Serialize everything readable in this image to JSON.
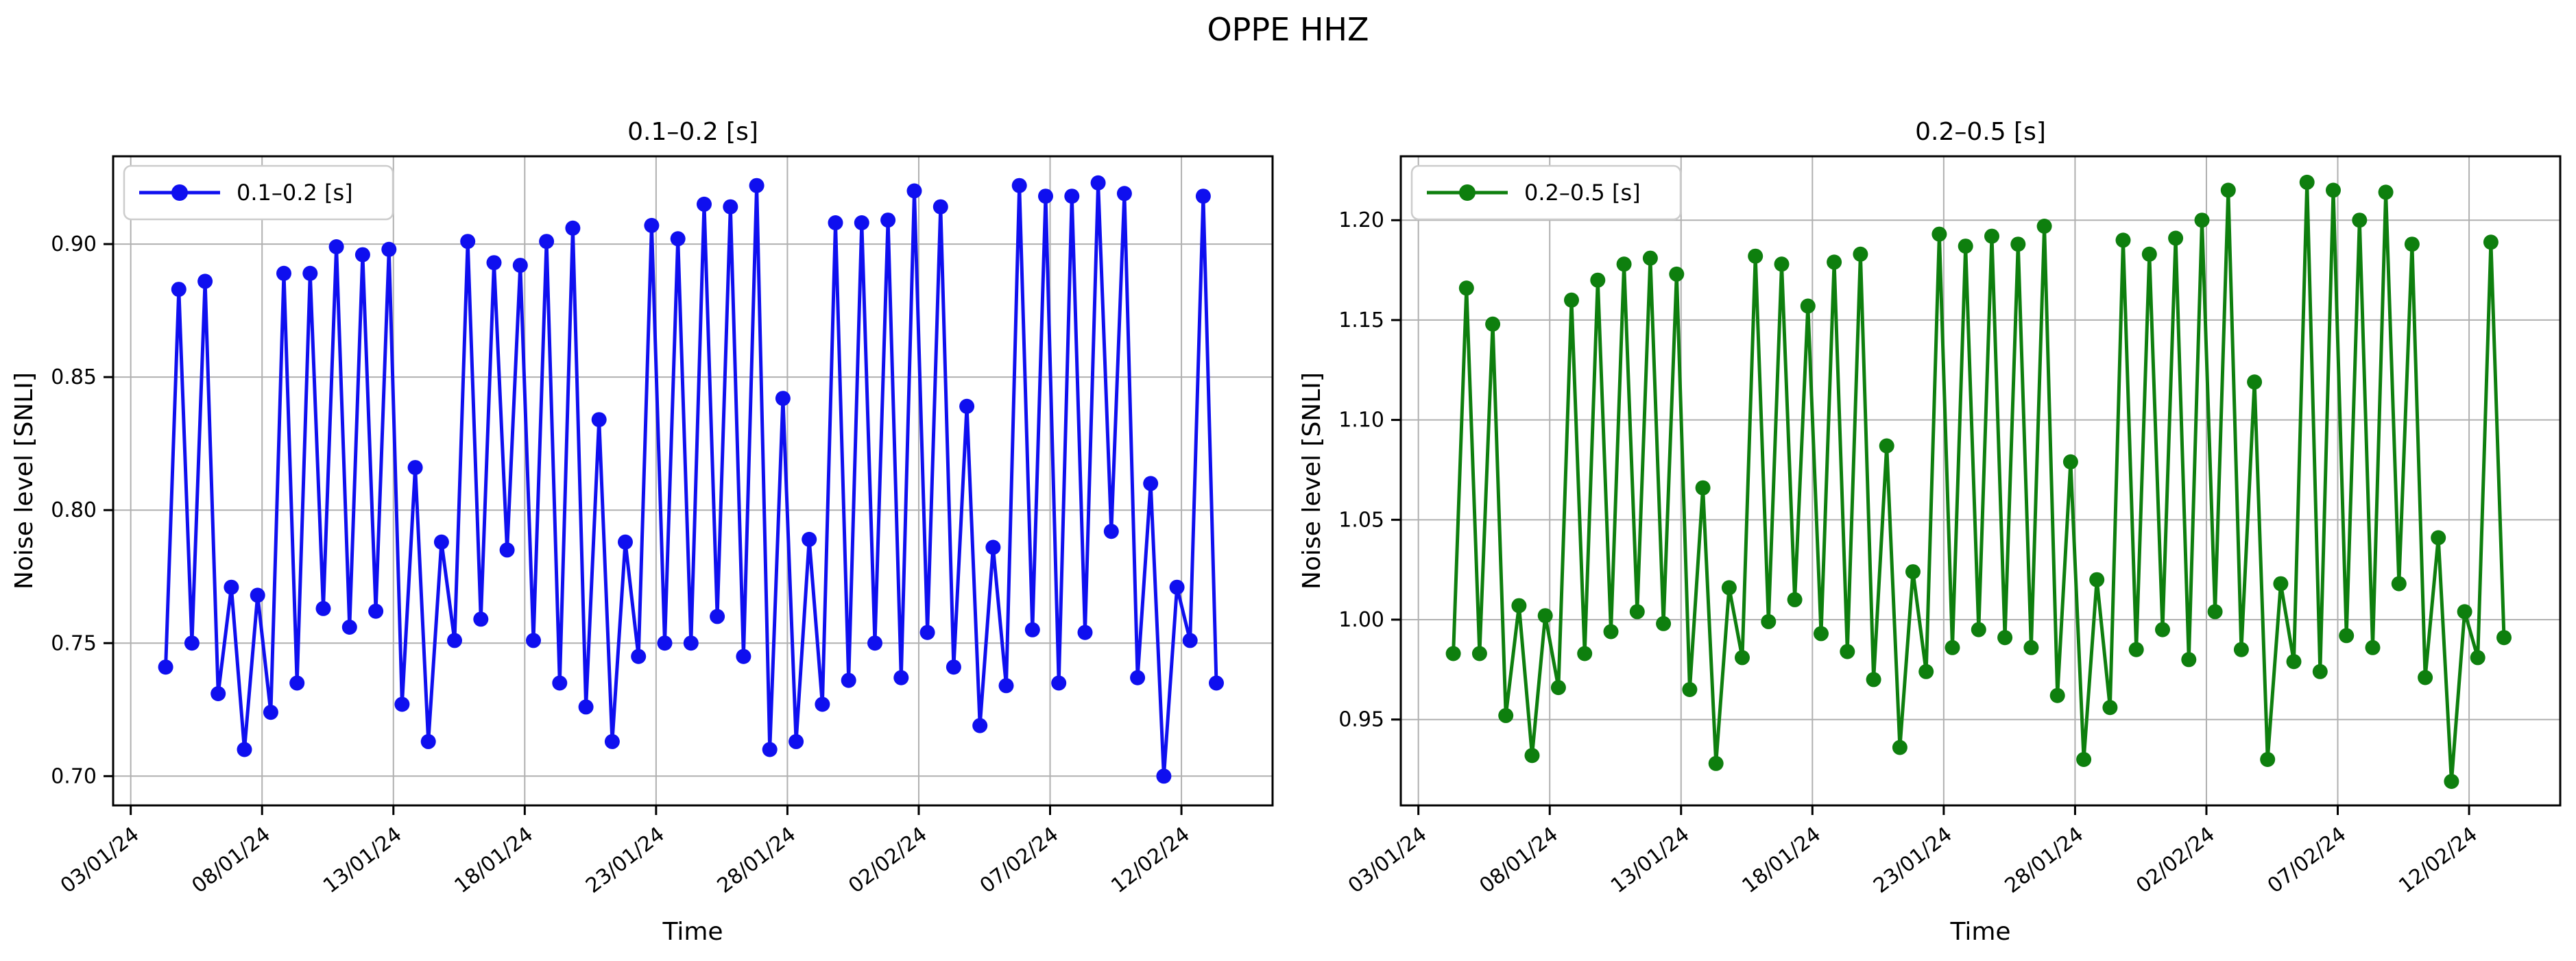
{
  "figure": {
    "title": "OPPE HHZ",
    "background_color": "#ffffff",
    "grid_color": "#b0b0b0",
    "spine_color": "#000000"
  },
  "chart_data": [
    {
      "type": "line",
      "title": "0.1–0.2 [s]",
      "legend_label": "0.1–0.2 [s]",
      "legend_position": "upper left",
      "color": "#0f0fef",
      "xlabel": "Time",
      "ylabel": "Noise level [SNLI]",
      "grid": true,
      "marker": "circle",
      "x_start_day": 1.33,
      "x_step_days": 0.5,
      "xlim": [
        -0.67,
        43.47
      ],
      "ylim": [
        0.689,
        0.933
      ],
      "yticks": [
        0.7,
        0.75,
        0.8,
        0.85,
        0.9
      ],
      "ytick_labels": [
        "0.70",
        "0.75",
        "0.80",
        "0.85",
        "0.90"
      ],
      "xticks": [
        0,
        5,
        10,
        15,
        20,
        25,
        30,
        35,
        40
      ],
      "xtick_labels": [
        "03/01/24",
        "08/01/24",
        "13/01/24",
        "18/01/24",
        "23/01/24",
        "28/01/24",
        "02/02/24",
        "07/02/24",
        "12/02/24"
      ],
      "values": [
        0.741,
        0.883,
        0.75,
        0.886,
        0.731,
        0.771,
        0.71,
        0.768,
        0.724,
        0.889,
        0.735,
        0.889,
        0.763,
        0.899,
        0.756,
        0.896,
        0.762,
        0.898,
        0.727,
        0.816,
        0.713,
        0.788,
        0.751,
        0.901,
        0.759,
        0.893,
        0.785,
        0.892,
        0.751,
        0.901,
        0.735,
        0.906,
        0.726,
        0.834,
        0.713,
        0.788,
        0.745,
        0.907,
        0.75,
        0.902,
        0.75,
        0.915,
        0.76,
        0.914,
        0.745,
        0.922,
        0.71,
        0.842,
        0.713,
        0.789,
        0.727,
        0.908,
        0.736,
        0.908,
        0.75,
        0.909,
        0.737,
        0.92,
        0.754,
        0.914,
        0.741,
        0.839,
        0.719,
        0.786,
        0.734,
        0.922,
        0.755,
        0.918,
        0.735,
        0.918,
        0.754,
        0.923,
        0.792,
        0.919,
        0.737,
        0.81,
        0.7,
        0.771,
        0.751,
        0.918,
        0.735
      ]
    },
    {
      "type": "line",
      "title": "0.2–0.5 [s]",
      "legend_label": "0.2–0.5 [s]",
      "legend_position": "upper left",
      "color": "#0e7f0e",
      "xlabel": "Time",
      "ylabel": "Noise level [SNLI]",
      "grid": true,
      "marker": "circle",
      "x_start_day": 1.33,
      "x_step_days": 0.5,
      "xlim": [
        -0.67,
        43.47
      ],
      "ylim": [
        0.907,
        1.232
      ],
      "yticks": [
        0.95,
        1.0,
        1.05,
        1.1,
        1.15,
        1.2
      ],
      "ytick_labels": [
        "0.95",
        "1.00",
        "1.05",
        "1.10",
        "1.15",
        "1.20"
      ],
      "xticks": [
        0,
        5,
        10,
        15,
        20,
        25,
        30,
        35,
        40
      ],
      "xtick_labels": [
        "03/01/24",
        "08/01/24",
        "13/01/24",
        "18/01/24",
        "23/01/24",
        "28/01/24",
        "02/02/24",
        "07/02/24",
        "12/02/24"
      ],
      "values": [
        0.983,
        1.166,
        0.983,
        1.148,
        0.952,
        1.007,
        0.932,
        1.002,
        0.966,
        1.16,
        0.983,
        1.17,
        0.994,
        1.178,
        1.004,
        1.181,
        0.998,
        1.173,
        0.965,
        1.066,
        0.928,
        1.016,
        0.981,
        1.182,
        0.999,
        1.178,
        1.01,
        1.157,
        0.993,
        1.179,
        0.984,
        1.183,
        0.97,
        1.087,
        0.936,
        1.024,
        0.974,
        1.193,
        0.986,
        1.187,
        0.995,
        1.192,
        0.991,
        1.188,
        0.986,
        1.197,
        0.962,
        1.079,
        0.93,
        1.02,
        0.956,
        1.19,
        0.985,
        1.183,
        0.995,
        1.191,
        0.98,
        1.2,
        1.004,
        1.215,
        0.985,
        1.119,
        0.93,
        1.018,
        0.979,
        1.219,
        0.974,
        1.215,
        0.992,
        1.2,
        0.986,
        1.214,
        1.018,
        1.188,
        0.971,
        1.041,
        0.919,
        1.004,
        0.981,
        1.189,
        0.991
      ]
    }
  ]
}
